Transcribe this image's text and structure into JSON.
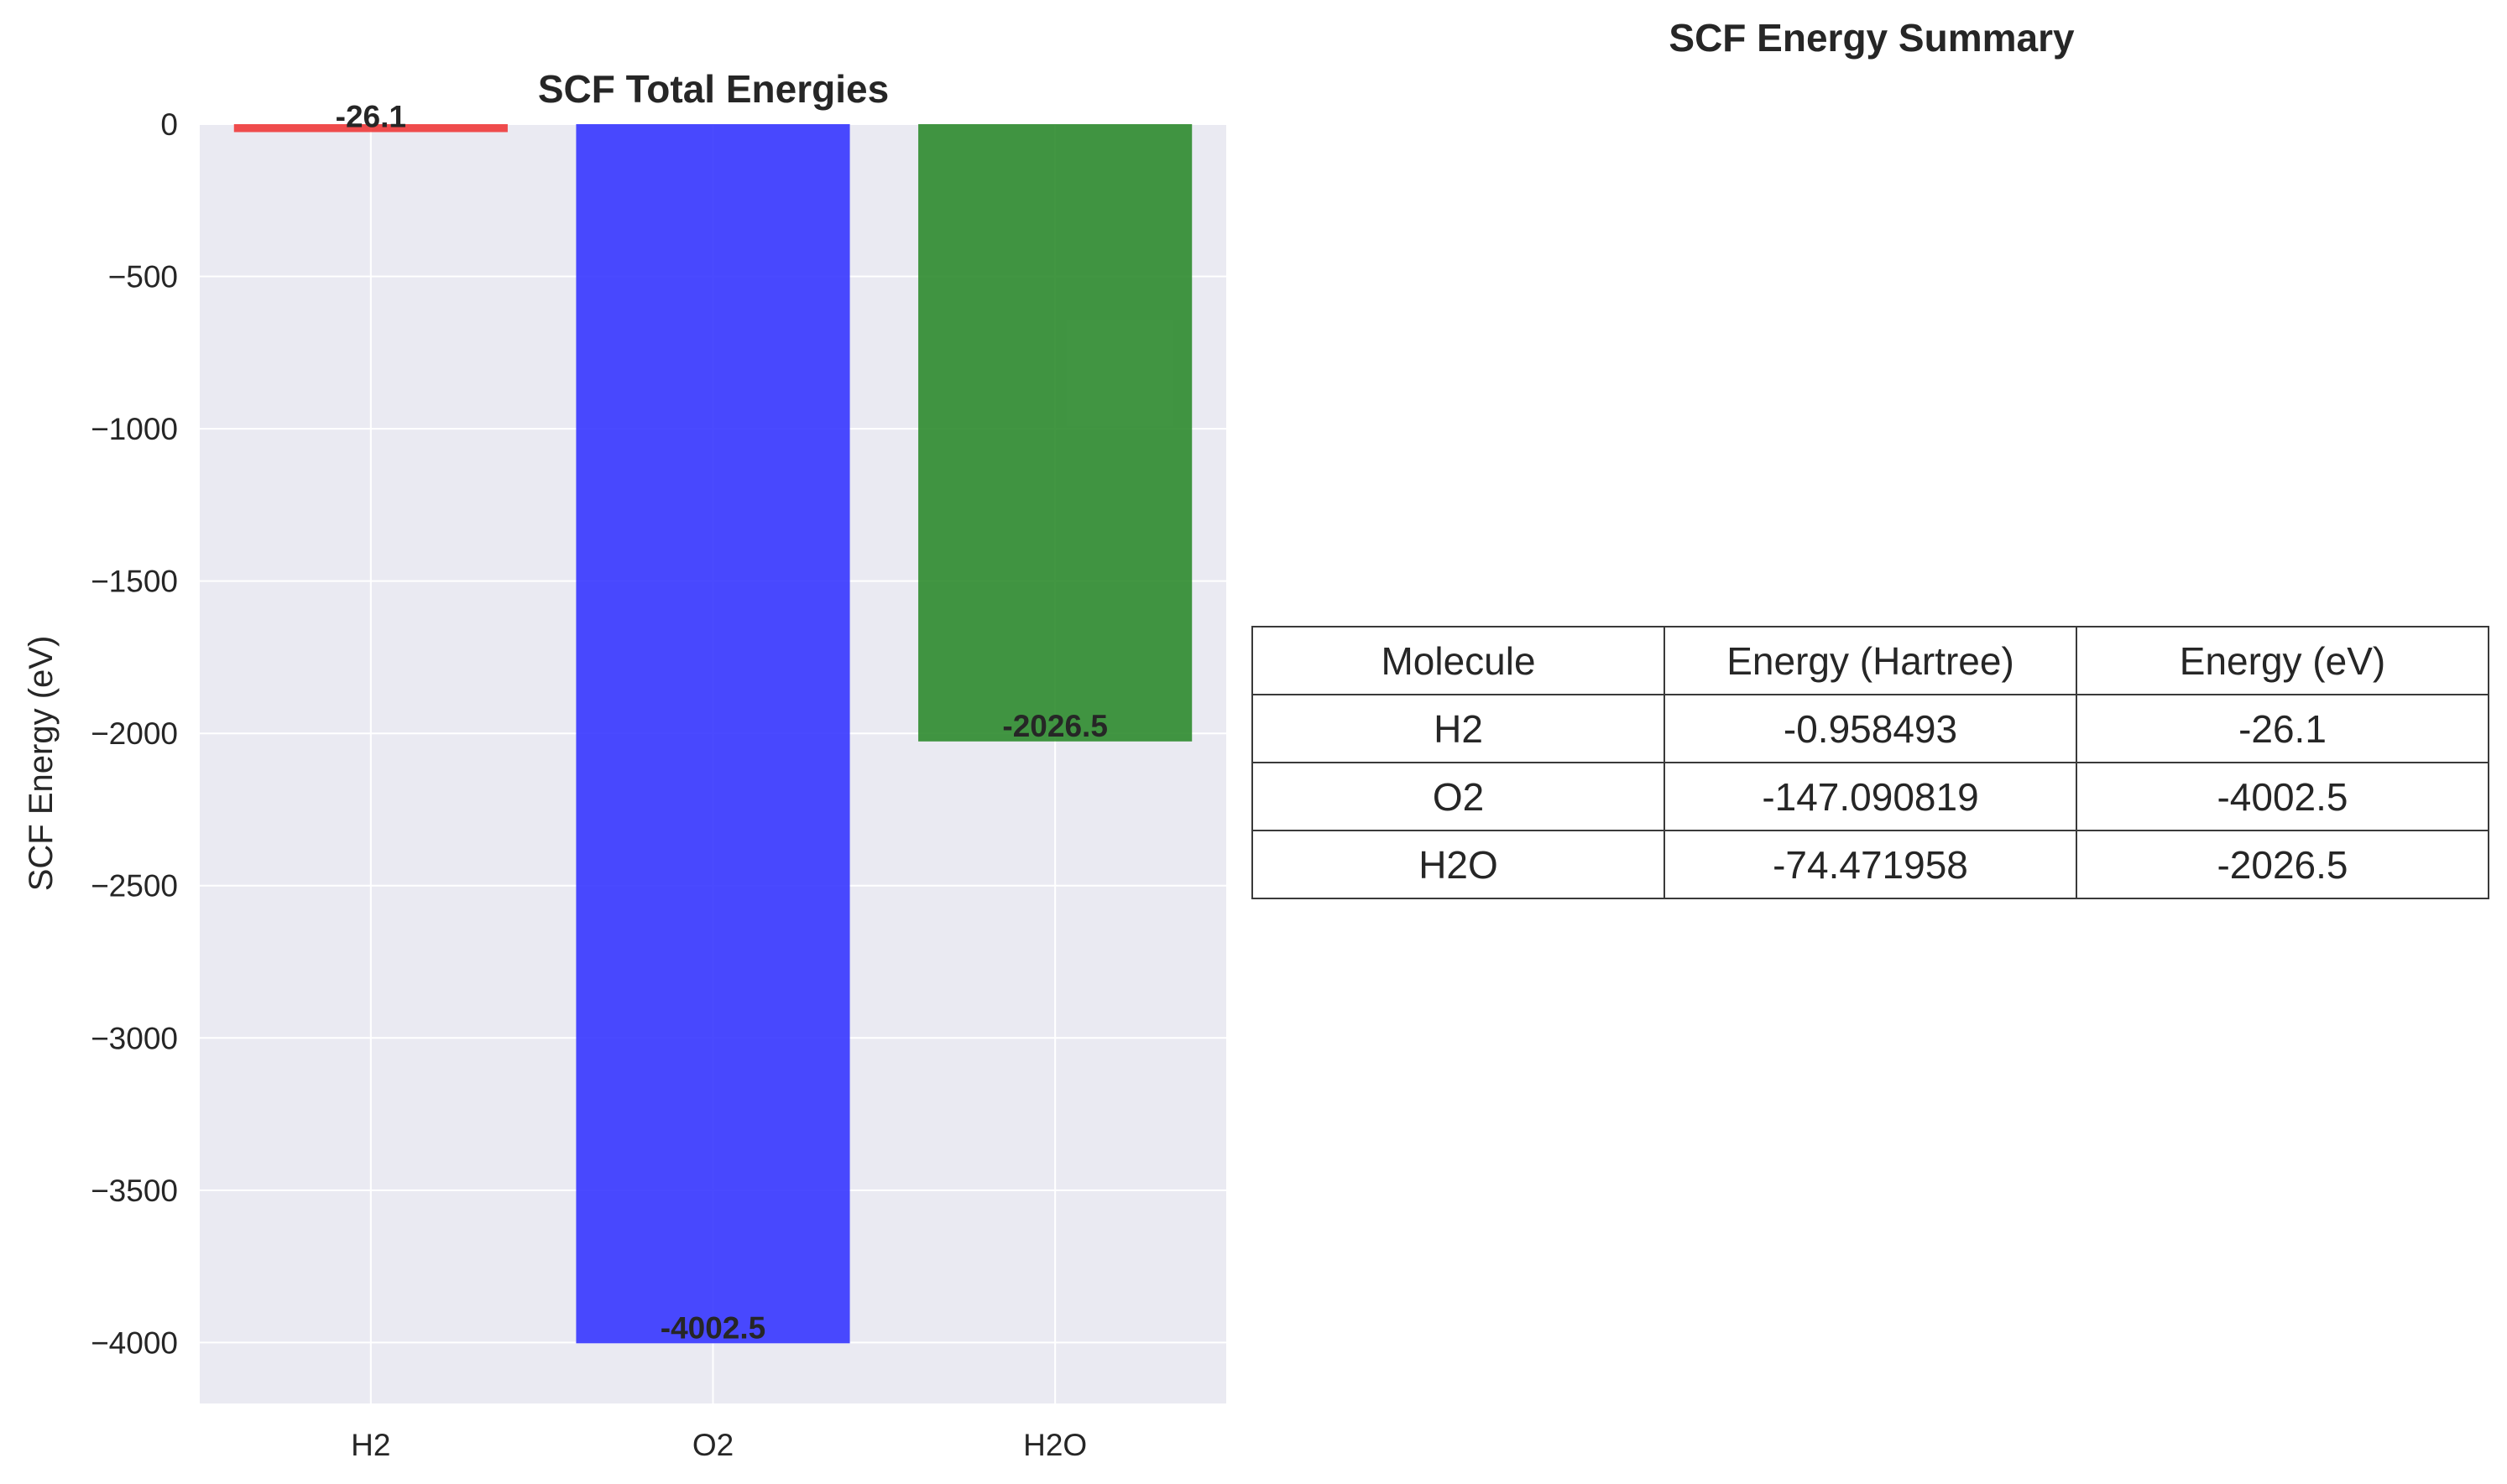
{
  "chart_data": [
    {
      "type": "bar",
      "title": "SCF Total Energies",
      "xlabel": "",
      "ylabel": "SCF Energy (eV)",
      "categories": [
        "H2",
        "O2",
        "H2O"
      ],
      "values": [
        -26.1,
        -4002.5,
        -2026.5
      ],
      "value_labels": [
        "-26.1",
        "-4002.5",
        "-2026.5"
      ],
      "colors": [
        "#f03a3a",
        "#3636ff",
        "#2e8b2e"
      ],
      "ylim": [
        -4200,
        0
      ],
      "yticks": [
        0,
        -500,
        -1000,
        -1500,
        -2000,
        -2500,
        -3000,
        -3500,
        -4000
      ],
      "ytick_labels": [
        "0",
        "−500",
        "−1000",
        "−1500",
        "−2000",
        "−2500",
        "−3000",
        "−3500",
        "−4000"
      ],
      "grid": true,
      "background": "#eaeaf2"
    },
    {
      "type": "table",
      "title": "SCF Energy Summary",
      "columns": [
        "Molecule",
        "Energy (Hartree)",
        "Energy (eV)"
      ],
      "rows": [
        [
          "H2",
          "-0.958493",
          "-26.1"
        ],
        [
          "O2",
          "-147.090819",
          "-4002.5"
        ],
        [
          "H2O",
          "-74.471958",
          "-2026.5"
        ]
      ]
    }
  ]
}
